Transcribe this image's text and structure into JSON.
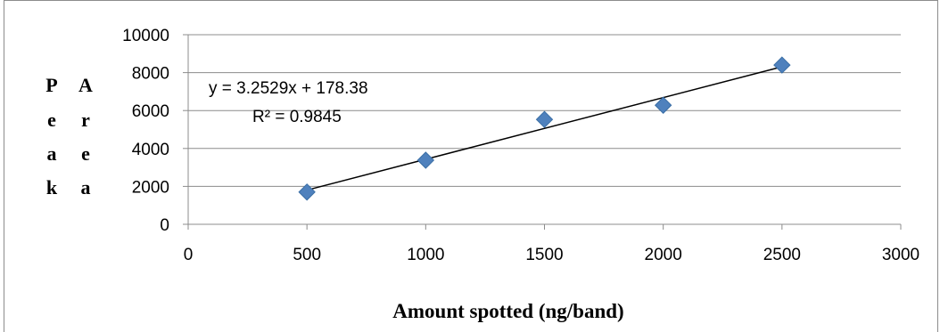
{
  "chart_data": {
    "type": "scatter",
    "title": "",
    "xlabel": "Amount spotted (ng/band)",
    "ylabel": "Peak Area",
    "ylabel_columns": [
      [
        "P",
        "e",
        "a",
        "k"
      ],
      [
        "A",
        "r",
        "e",
        "a"
      ]
    ],
    "xlim": [
      0,
      3000
    ],
    "ylim": [
      0,
      10000
    ],
    "xticks": [
      "0",
      "500",
      "1000",
      "1500",
      "2000",
      "2500",
      "3000"
    ],
    "yticks": [
      "0",
      "2000",
      "4000",
      "6000",
      "8000",
      "10000"
    ],
    "grid": true,
    "legend": "none",
    "series": [
      {
        "x": [
          500,
          1000,
          1500,
          2000,
          2500
        ],
        "y": [
          1700,
          3380,
          5530,
          6280,
          8400
        ],
        "marker": "diamond",
        "color": "#4f81bd"
      }
    ],
    "trendline": {
      "type": "linear",
      "slope": 3.2529,
      "intercept": 178.38,
      "x_range": [
        500,
        2500
      ],
      "equation": "y = 3.2529x + 178.38",
      "r_squared": "R² = 0.9845"
    }
  }
}
